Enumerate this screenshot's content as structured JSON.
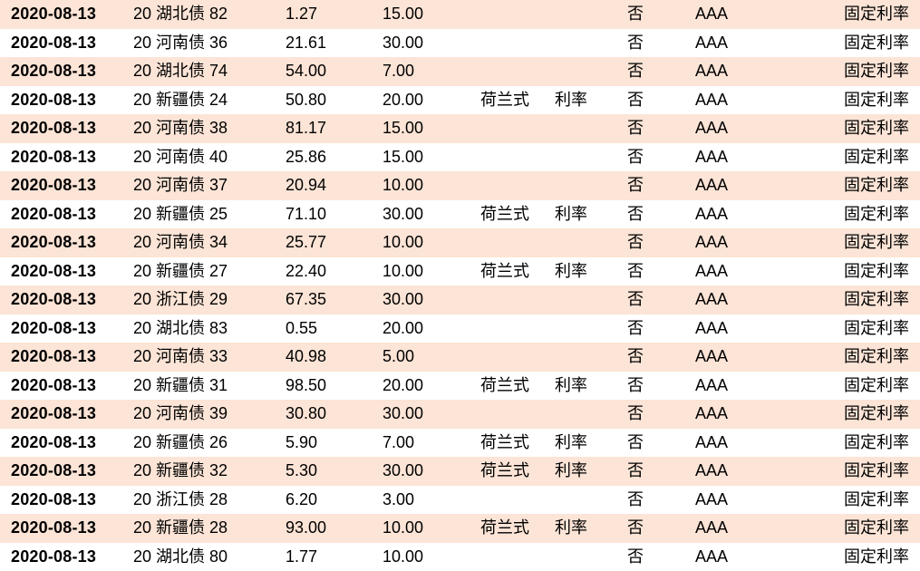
{
  "colors": {
    "stripe_row_bg": "#FCE4D6",
    "plain_row_bg": "#FFFFFF",
    "text_color": "#000000"
  },
  "chart_data": {
    "type": "table",
    "headers_visible": false,
    "columns": [
      "date",
      "bond_name",
      "value_a",
      "value_b",
      "tender_style",
      "tender_target",
      "flag",
      "rating",
      "rate_type"
    ],
    "rows": [
      {
        "date": "2020-08-13",
        "bond_name": "20 湖北债 82",
        "value_a": "1.27",
        "value_b": "15.00",
        "tender_style": "",
        "tender_target": "",
        "flag": "否",
        "rating": "AAA",
        "rate_type": "固定利率"
      },
      {
        "date": "2020-08-13",
        "bond_name": "20 河南债 36",
        "value_a": "21.61",
        "value_b": "30.00",
        "tender_style": "",
        "tender_target": "",
        "flag": "否",
        "rating": "AAA",
        "rate_type": "固定利率"
      },
      {
        "date": "2020-08-13",
        "bond_name": "20 湖北债 74",
        "value_a": "54.00",
        "value_b": "7.00",
        "tender_style": "",
        "tender_target": "",
        "flag": "否",
        "rating": "AAA",
        "rate_type": "固定利率"
      },
      {
        "date": "2020-08-13",
        "bond_name": "20 新疆债 24",
        "value_a": "50.80",
        "value_b": "20.00",
        "tender_style": "荷兰式",
        "tender_target": "利率",
        "flag": "否",
        "rating": "AAA",
        "rate_type": "固定利率"
      },
      {
        "date": "2020-08-13",
        "bond_name": "20 河南债 38",
        "value_a": "81.17",
        "value_b": "15.00",
        "tender_style": "",
        "tender_target": "",
        "flag": "否",
        "rating": "AAA",
        "rate_type": "固定利率"
      },
      {
        "date": "2020-08-13",
        "bond_name": "20 河南债 40",
        "value_a": "25.86",
        "value_b": "15.00",
        "tender_style": "",
        "tender_target": "",
        "flag": "否",
        "rating": "AAA",
        "rate_type": "固定利率"
      },
      {
        "date": "2020-08-13",
        "bond_name": "20 河南债 37",
        "value_a": "20.94",
        "value_b": "10.00",
        "tender_style": "",
        "tender_target": "",
        "flag": "否",
        "rating": "AAA",
        "rate_type": "固定利率"
      },
      {
        "date": "2020-08-13",
        "bond_name": "20 新疆债 25",
        "value_a": "71.10",
        "value_b": "30.00",
        "tender_style": "荷兰式",
        "tender_target": "利率",
        "flag": "否",
        "rating": "AAA",
        "rate_type": "固定利率"
      },
      {
        "date": "2020-08-13",
        "bond_name": "20 河南债 34",
        "value_a": "25.77",
        "value_b": "10.00",
        "tender_style": "",
        "tender_target": "",
        "flag": "否",
        "rating": "AAA",
        "rate_type": "固定利率"
      },
      {
        "date": "2020-08-13",
        "bond_name": "20 新疆债 27",
        "value_a": "22.40",
        "value_b": "10.00",
        "tender_style": "荷兰式",
        "tender_target": "利率",
        "flag": "否",
        "rating": "AAA",
        "rate_type": "固定利率"
      },
      {
        "date": "2020-08-13",
        "bond_name": "20 浙江债 29",
        "value_a": "67.35",
        "value_b": "30.00",
        "tender_style": "",
        "tender_target": "",
        "flag": "否",
        "rating": "AAA",
        "rate_type": "固定利率"
      },
      {
        "date": "2020-08-13",
        "bond_name": "20 湖北债 83",
        "value_a": "0.55",
        "value_b": "20.00",
        "tender_style": "",
        "tender_target": "",
        "flag": "否",
        "rating": "AAA",
        "rate_type": "固定利率"
      },
      {
        "date": "2020-08-13",
        "bond_name": "20 河南债 33",
        "value_a": "40.98",
        "value_b": "5.00",
        "tender_style": "",
        "tender_target": "",
        "flag": "否",
        "rating": "AAA",
        "rate_type": "固定利率"
      },
      {
        "date": "2020-08-13",
        "bond_name": "20 新疆债 31",
        "value_a": "98.50",
        "value_b": "20.00",
        "tender_style": "荷兰式",
        "tender_target": "利率",
        "flag": "否",
        "rating": "AAA",
        "rate_type": "固定利率"
      },
      {
        "date": "2020-08-13",
        "bond_name": "20 河南债 39",
        "value_a": "30.80",
        "value_b": "30.00",
        "tender_style": "",
        "tender_target": "",
        "flag": "否",
        "rating": "AAA",
        "rate_type": "固定利率"
      },
      {
        "date": "2020-08-13",
        "bond_name": "20 新疆债 26",
        "value_a": "5.90",
        "value_b": "7.00",
        "tender_style": "荷兰式",
        "tender_target": "利率",
        "flag": "否",
        "rating": "AAA",
        "rate_type": "固定利率"
      },
      {
        "date": "2020-08-13",
        "bond_name": "20 新疆债 32",
        "value_a": "5.30",
        "value_b": "30.00",
        "tender_style": "荷兰式",
        "tender_target": "利率",
        "flag": "否",
        "rating": "AAA",
        "rate_type": "固定利率"
      },
      {
        "date": "2020-08-13",
        "bond_name": "20 浙江债 28",
        "value_a": "6.20",
        "value_b": "3.00",
        "tender_style": "",
        "tender_target": "",
        "flag": "否",
        "rating": "AAA",
        "rate_type": "固定利率"
      },
      {
        "date": "2020-08-13",
        "bond_name": "20 新疆债 28",
        "value_a": "93.00",
        "value_b": "10.00",
        "tender_style": "荷兰式",
        "tender_target": "利率",
        "flag": "否",
        "rating": "AAA",
        "rate_type": "固定利率"
      },
      {
        "date": "2020-08-13",
        "bond_name": "20 湖北债 80",
        "value_a": "1.77",
        "value_b": "10.00",
        "tender_style": "",
        "tender_target": "",
        "flag": "否",
        "rating": "AAA",
        "rate_type": "固定利率"
      }
    ]
  }
}
